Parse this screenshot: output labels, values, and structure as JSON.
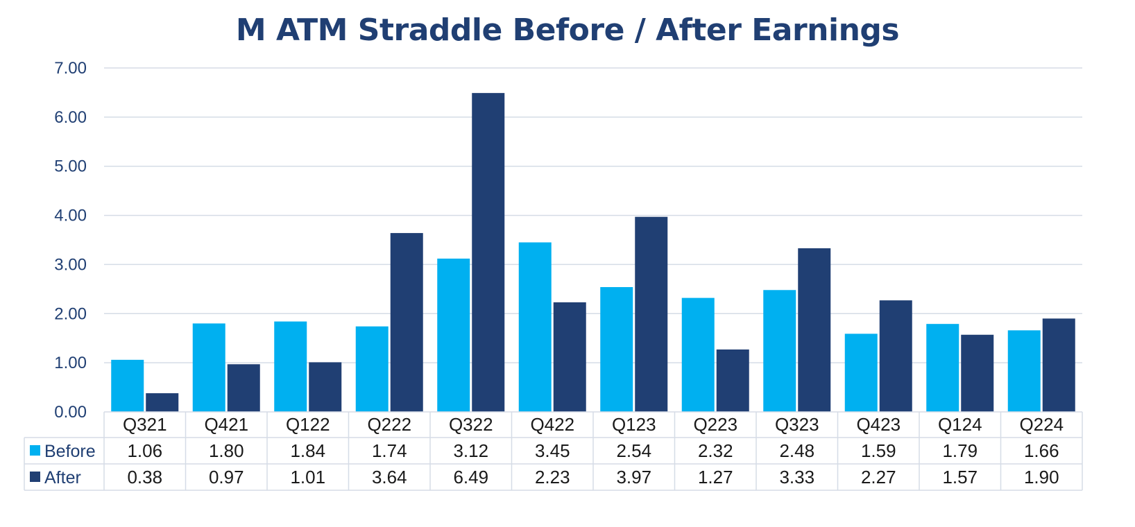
{
  "chart_data": {
    "type": "bar",
    "title": "M ATM Straddle Before / After Earnings",
    "categories": [
      "Q321",
      "Q421",
      "Q122",
      "Q222",
      "Q322",
      "Q422",
      "Q123",
      "Q223",
      "Q323",
      "Q423",
      "Q124",
      "Q224"
    ],
    "series": [
      {
        "name": "Before",
        "color": "#00b0f0",
        "values": [
          1.06,
          1.8,
          1.84,
          1.74,
          3.12,
          3.45,
          2.54,
          2.32,
          2.48,
          1.59,
          1.79,
          1.66
        ],
        "labels": [
          "1.06",
          "1.80",
          "1.84",
          "1.74",
          "3.12",
          "3.45",
          "2.54",
          "2.32",
          "2.48",
          "1.59",
          "1.79",
          "1.66"
        ]
      },
      {
        "name": "After",
        "color": "#203f73",
        "values": [
          0.38,
          0.97,
          1.01,
          3.64,
          6.49,
          2.23,
          3.97,
          1.27,
          3.33,
          2.27,
          1.57,
          1.9
        ],
        "labels": [
          "0.38",
          "0.97",
          "1.01",
          "3.64",
          "6.49",
          "2.23",
          "3.97",
          "1.27",
          "3.33",
          "2.27",
          "1.57",
          "1.90"
        ]
      }
    ],
    "ylim": [
      0,
      7
    ],
    "yticks": [
      "0.00",
      "1.00",
      "2.00",
      "3.00",
      "4.00",
      "5.00",
      "6.00",
      "7.00"
    ],
    "grid": true,
    "legend": "data-table"
  }
}
